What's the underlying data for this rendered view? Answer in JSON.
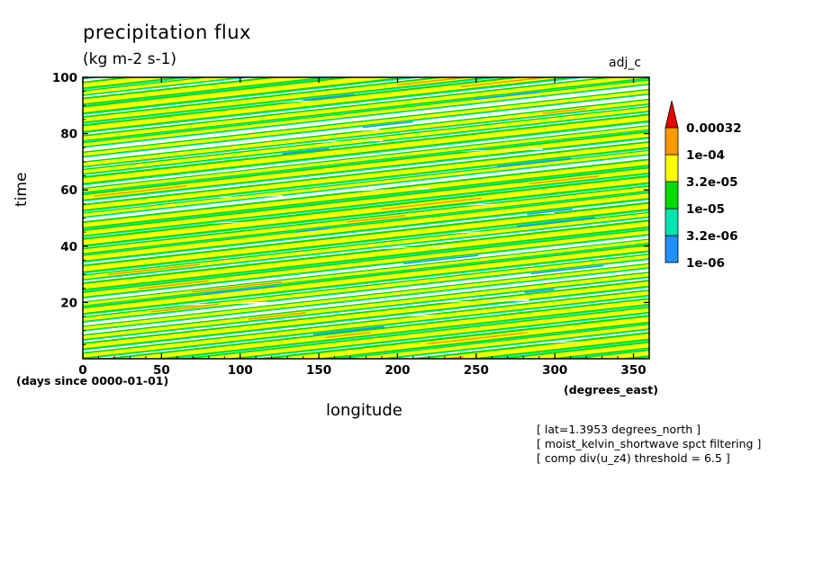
{
  "chart_data": {
    "type": "heatmap",
    "title": "precipitation flux",
    "subtitle": "(kg m-2 s-1)",
    "tag": "adj_c",
    "xlabel": "longitude",
    "ylabel": "time",
    "x_unit": "(degrees_east)",
    "y_unit": "(days since 0000-01-01)",
    "xlim": [
      0,
      360
    ],
    "ylim": [
      0,
      100
    ],
    "x_ticks": [
      0,
      50,
      100,
      150,
      200,
      250,
      300,
      350
    ],
    "y_ticks": [
      20,
      40,
      60,
      80,
      100
    ],
    "grid": false,
    "legend_position": "right",
    "color_levels": [
      {
        "label": "1e-06",
        "color": "#1e90ff"
      },
      {
        "label": "3.2e-06",
        "color": "#00e5b0"
      },
      {
        "label": "1e-05",
        "color": "#00dd00"
      },
      {
        "label": "3.2e-05",
        "color": "#ffff00"
      },
      {
        "label": "1e-04",
        "color": "#ff9900"
      },
      {
        "label": "0.00032",
        "color": "#e60000"
      }
    ],
    "notes": [
      "[ lat=1.3953 degrees_north ]",
      "[ moist_kelvin_shortwave spct filtering ]",
      "[ comp div(u_z4) threshold = 6.5 ]"
    ]
  }
}
